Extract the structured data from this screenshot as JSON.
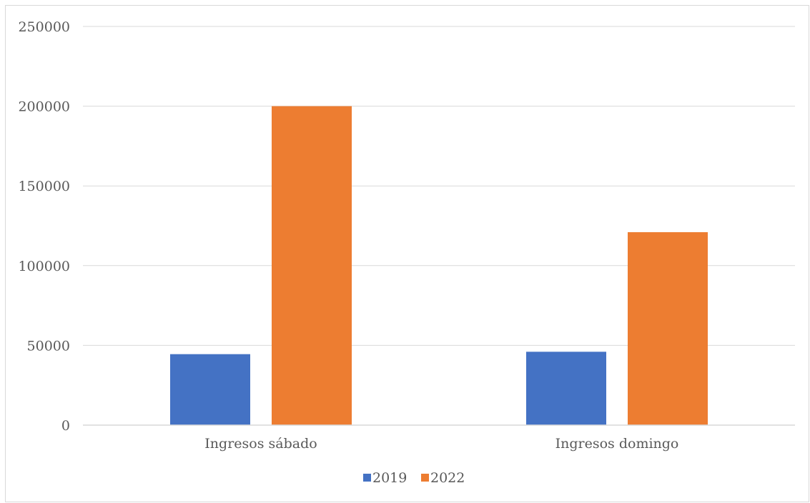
{
  "chart_data": {
    "type": "bar",
    "categories": [
      "Ingresos sábado",
      "Ingresos domingo"
    ],
    "series": [
      {
        "name": "2019",
        "values": [
          44500,
          46000
        ],
        "color": "#4472c4"
      },
      {
        "name": "2022",
        "values": [
          200000,
          121000
        ],
        "color": "#ed7d31"
      }
    ],
    "ylim": [
      0,
      250000
    ],
    "yticks": [
      0,
      50000,
      100000,
      150000,
      200000,
      250000
    ],
    "grid": true,
    "legend": "bottom",
    "gridline_color": "#d9d9d9",
    "axis_color": "#d9d9d9",
    "text_color": "#595959"
  }
}
